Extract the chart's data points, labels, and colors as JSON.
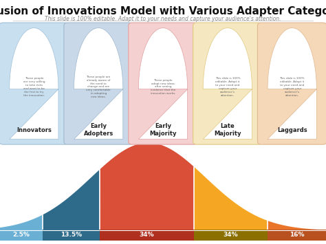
{
  "title": "Diffusion of Innovations Model with Various Adapter Categories",
  "subtitle": "This slide is 100% editable. Adapt it to your needs and capture your audience's attention.",
  "categories": [
    "Innovators",
    "Early\nAdopters",
    "Early\nMajority",
    "Late\nMajority",
    "Laggards"
  ],
  "percentages": [
    "2.5%",
    "13.5%",
    "34%",
    "34%",
    "16%"
  ],
  "descriptions": [
    "These people\nare very willing\nto take risks\nand want to be\nthe first to try\nthe innovation.",
    "These people are\nalready aware of\nthe need to\nchange and are\nvery comfortable\nin adopting\nnew ideas.",
    "These people\nadopt new ideas\nafter seeing\nevidence that the\ninnovation works.",
    "This slide is 100%\neditable. Adapt it\nto your need and\ncapture your\naudience's\nattention.",
    "This slide is 100%\neditable. Adapt it\nto your need and\ncapture your\naudience's\nattention."
  ],
  "bell_colors": [
    "#6ab0d4",
    "#2e6b8a",
    "#d94f38",
    "#f5a623",
    "#e8752a"
  ],
  "bar_colors": [
    "#6ab0d4",
    "#2e6b8a",
    "#b03020",
    "#8b7000",
    "#b85020"
  ],
  "card_bg_colors": [
    "#c8dff0",
    "#c8d8e8",
    "#f5d0d0",
    "#f5e8c0",
    "#f5d8b8"
  ],
  "card_border_colors": [
    "#a0c0d8",
    "#a0b8cc",
    "#e0a0a0",
    "#e0c880",
    "#e0b890"
  ],
  "background_color": "#ffffff",
  "title_fontsize": 11,
  "subtitle_fontsize": 5.5,
  "segment_boundaries": [
    0.0,
    0.13,
    0.305,
    0.595,
    0.82,
    1.0
  ],
  "bell_mu": 0.455,
  "bell_sigma": 0.175
}
